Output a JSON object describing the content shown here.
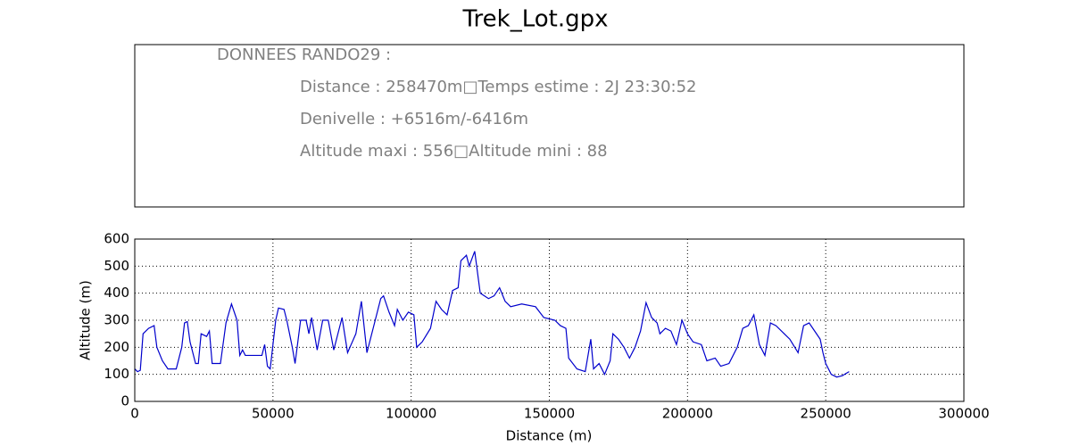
{
  "chart_data": {
    "type": "line",
    "title": "Trek_Lot.gpx",
    "annotations": [
      "DONNEES RANDO29  :",
      "Distance : 258470m□Temps estime : 2J 23:30:52",
      "Denivelle : +6516m/-6416m",
      "Altitude maxi : 556□Altitude mini : 88"
    ],
    "x_label": "Distance (m)",
    "y_label": "Altitude (m)",
    "xlim": [
      0,
      300000
    ],
    "ylim": [
      0,
      600
    ],
    "xticks": [
      0,
      50000,
      100000,
      150000,
      200000,
      250000,
      300000
    ],
    "yticks": [
      0,
      100,
      200,
      300,
      400,
      500,
      600
    ],
    "grid": true,
    "x": [
      0,
      1000,
      2000,
      3000,
      5000,
      7000,
      8000,
      10000,
      12000,
      15000,
      17000,
      18000,
      19000,
      20000,
      22000,
      23000,
      24000,
      26000,
      27000,
      28000,
      31000,
      33000,
      35000,
      37000,
      38000,
      39000,
      40000,
      46000,
      47000,
      48000,
      49000,
      51000,
      52000,
      54000,
      55000,
      57000,
      58000,
      60000,
      62000,
      63000,
      64000,
      66000,
      68000,
      70000,
      72000,
      75000,
      77000,
      80000,
      82000,
      84000,
      87000,
      89000,
      90000,
      92000,
      94000,
      95000,
      97000,
      99000,
      101000,
      102000,
      104000,
      107000,
      109000,
      111000,
      113000,
      115000,
      117000,
      118000,
      120000,
      121000,
      123000,
      125000,
      128000,
      130000,
      132000,
      134000,
      136000,
      140000,
      145000,
      148000,
      152000,
      154000,
      156000,
      157000,
      160000,
      163000,
      165000,
      166000,
      168000,
      170000,
      172000,
      173000,
      175000,
      177000,
      179000,
      181000,
      183000,
      185000,
      187000,
      189000,
      190000,
      192000,
      194000,
      196000,
      198000,
      200000,
      202000,
      205000,
      207000,
      210000,
      212000,
      215000,
      218000,
      220000,
      222000,
      224000,
      226000,
      228000,
      230000,
      232000,
      235000,
      237000,
      240000,
      242000,
      244000,
      246000,
      248000,
      249000,
      250000,
      252000,
      254000,
      256000,
      258470
    ],
    "series": [
      {
        "name": "Altitude",
        "color": "#0000cc",
        "values": [
          120,
          110,
          115,
          250,
          270,
          280,
          200,
          150,
          120,
          120,
          200,
          290,
          295,
          220,
          140,
          140,
          250,
          240,
          260,
          140,
          140,
          290,
          360,
          300,
          170,
          190,
          170,
          170,
          210,
          130,
          120,
          300,
          345,
          340,
          300,
          200,
          140,
          300,
          300,
          250,
          310,
          190,
          300,
          300,
          190,
          310,
          180,
          250,
          370,
          180,
          300,
          380,
          390,
          330,
          280,
          340,
          300,
          330,
          320,
          200,
          220,
          270,
          370,
          340,
          320,
          410,
          420,
          520,
          540,
          500,
          555,
          400,
          380,
          390,
          420,
          370,
          350,
          360,
          350,
          310,
          300,
          280,
          270,
          160,
          120,
          110,
          230,
          120,
          140,
          100,
          150,
          250,
          230,
          200,
          160,
          200,
          260,
          365,
          310,
          290,
          250,
          270,
          260,
          210,
          300,
          250,
          220,
          210,
          150,
          160,
          130,
          140,
          200,
          270,
          280,
          320,
          210,
          170,
          290,
          280,
          250,
          230,
          180,
          280,
          290,
          260,
          230,
          180,
          140,
          100,
          90,
          95,
          110
        ]
      }
    ]
  }
}
